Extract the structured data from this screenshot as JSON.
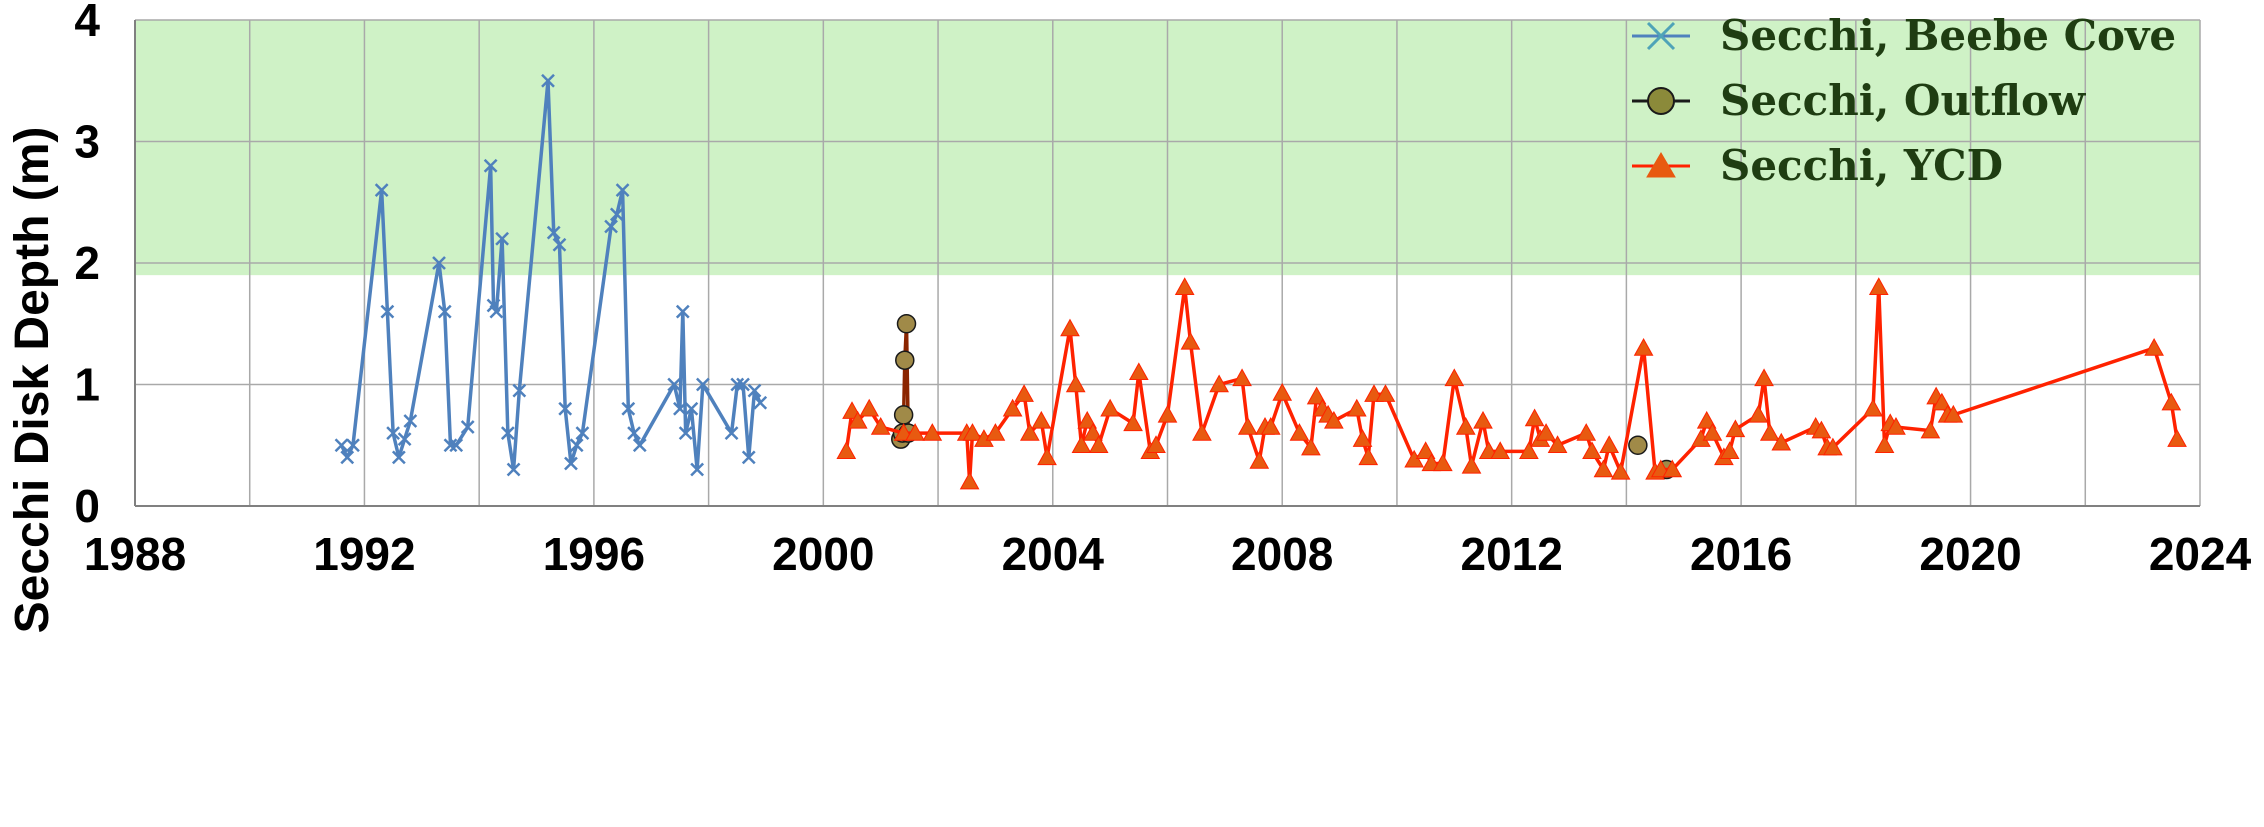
{
  "chart_data": {
    "type": "line",
    "title": "",
    "xlabel": "",
    "ylabel": "Secchi Disk Depth (m)",
    "xlim": [
      1988,
      2024
    ],
    "ylim": [
      0,
      4
    ],
    "x_ticks": [
      "1988",
      "1992",
      "1996",
      "2000",
      "2004",
      "2008",
      "2012",
      "2016",
      "2020",
      "2024"
    ],
    "y_ticks": [
      "0",
      "1",
      "2",
      "3",
      "4"
    ],
    "grid": true,
    "legend_position": "top-right",
    "shaded_band": {
      "from": 1.9,
      "to": 4,
      "color": "#cff2c6"
    },
    "series": [
      {
        "name": "Secchi, Beebe Cove",
        "color": "#4f81bd",
        "marker": "x",
        "x": [
          1991.6,
          1991.7,
          1991.8,
          1992.3,
          1992.4,
          1992.5,
          1992.6,
          1992.7,
          1992.8,
          1993.3,
          1993.4,
          1993.5,
          1993.6,
          1993.8,
          1994.2,
          1994.25,
          1994.3,
          1994.4,
          1994.5,
          1994.6,
          1994.7,
          1995.2,
          1995.3,
          1995.4,
          1995.5,
          1995.6,
          1995.7,
          1995.8,
          1996.3,
          1996.4,
          1996.5,
          1996.6,
          1996.7,
          1996.8,
          1997.4,
          1997.5,
          1997.55,
          1997.6,
          1997.7,
          1997.8,
          1997.9,
          1998.4,
          1998.5,
          1998.6,
          1998.7,
          1998.8,
          1998.9
        ],
        "y": [
          0.5,
          0.4,
          0.5,
          2.6,
          1.6,
          0.6,
          0.4,
          0.55,
          0.7,
          2.0,
          1.6,
          0.5,
          0.5,
          0.65,
          2.8,
          1.65,
          1.6,
          2.2,
          0.6,
          0.3,
          0.95,
          3.5,
          2.25,
          2.15,
          0.8,
          0.35,
          0.5,
          0.6,
          2.3,
          2.4,
          2.6,
          0.8,
          0.6,
          0.5,
          1.0,
          0.8,
          1.6,
          0.6,
          0.8,
          0.3,
          1.0,
          0.6,
          1.0,
          1.0,
          0.4,
          0.95,
          0.85
        ]
      },
      {
        "name": "Secchi, Outflow",
        "color": "#8b2500",
        "marker_fill": "#a08a48",
        "marker": "circle",
        "x": [
          2001.35,
          2001.38,
          2001.4,
          2001.42,
          2001.45,
          2001.48,
          2014.2,
          2014.7
        ],
        "y": [
          0.55,
          0.6,
          0.75,
          1.2,
          1.5,
          0.6,
          0.5,
          0.3
        ]
      },
      {
        "name": "Secchi, YCD",
        "color": "#ff2200",
        "marker_fill": "#e85a10",
        "marker": "triangle",
        "x": [
          2000.4,
          2000.5,
          2000.6,
          2000.8,
          2001.0,
          2001.4,
          2001.6,
          2001.9,
          2002.5,
          2002.55,
          2002.6,
          2002.8,
          2003.0,
          2003.3,
          2003.5,
          2003.6,
          2003.8,
          2003.9,
          2004.3,
          2004.4,
          2004.5,
          2004.6,
          2004.7,
          2004.8,
          2005.0,
          2005.4,
          2005.5,
          2005.7,
          2005.8,
          2006.0,
          2006.3,
          2006.4,
          2006.6,
          2006.9,
          2007.3,
          2007.4,
          2007.6,
          2007.7,
          2007.8,
          2008.0,
          2008.3,
          2008.5,
          2008.6,
          2008.7,
          2008.8,
          2008.9,
          2009.3,
          2009.4,
          2009.5,
          2009.6,
          2009.8,
          2010.3,
          2010.5,
          2010.6,
          2010.8,
          2011.0,
          2011.2,
          2011.3,
          2011.5,
          2011.6,
          2011.8,
          2012.3,
          2012.4,
          2012.5,
          2012.6,
          2012.8,
          2013.3,
          2013.4,
          2013.6,
          2013.7,
          2013.9,
          2014.3,
          2014.5,
          2014.6,
          2014.8,
          2015.3,
          2015.4,
          2015.5,
          2015.7,
          2015.8,
          2015.9,
          2016.3,
          2016.4,
          2016.5,
          2016.7,
          2017.3,
          2017.4,
          2017.5,
          2017.6,
          2018.3,
          2018.4,
          2018.5,
          2018.6,
          2018.7,
          2019.3,
          2019.4,
          2019.5,
          2019.6,
          2019.7,
          2023.2,
          2023.5,
          2023.6
        ],
        "y": [
          0.45,
          0.78,
          0.7,
          0.8,
          0.65,
          0.6,
          0.6,
          0.6,
          0.6,
          0.2,
          0.6,
          0.55,
          0.6,
          0.8,
          0.92,
          0.6,
          0.7,
          0.4,
          1.46,
          1.0,
          0.5,
          0.7,
          0.6,
          0.5,
          0.8,
          0.68,
          1.1,
          0.45,
          0.5,
          0.75,
          1.8,
          1.35,
          0.6,
          1.0,
          1.05,
          0.65,
          0.37,
          0.65,
          0.65,
          0.93,
          0.6,
          0.48,
          0.9,
          0.8,
          0.75,
          0.7,
          0.8,
          0.55,
          0.4,
          0.92,
          0.92,
          0.38,
          0.45,
          0.35,
          0.35,
          1.05,
          0.65,
          0.33,
          0.7,
          0.45,
          0.45,
          0.45,
          0.72,
          0.55,
          0.6,
          0.5,
          0.6,
          0.45,
          0.3,
          0.5,
          0.28,
          1.3,
          0.28,
          0.3,
          0.3,
          0.55,
          0.7,
          0.6,
          0.4,
          0.45,
          0.63,
          0.75,
          1.05,
          0.6,
          0.52,
          0.65,
          0.62,
          0.48,
          0.48,
          0.8,
          1.8,
          0.5,
          0.68,
          0.65,
          0.62,
          0.9,
          0.85,
          0.75,
          0.75,
          1.3,
          0.85,
          0.55
        ]
      }
    ]
  }
}
